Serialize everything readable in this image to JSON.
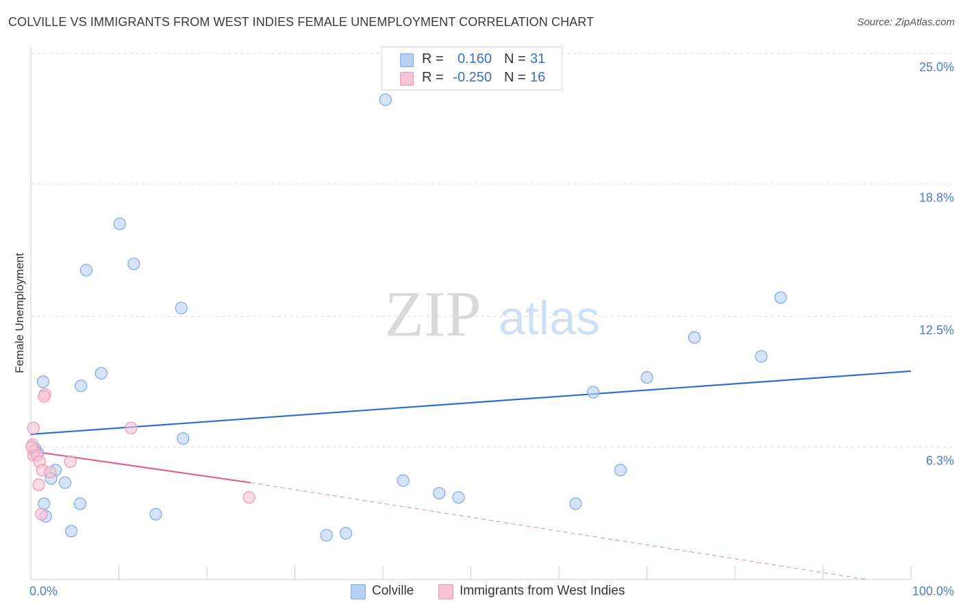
{
  "title": "COLVILLE VS IMMIGRANTS FROM WEST INDIES FEMALE UNEMPLOYMENT CORRELATION CHART",
  "source": "Source: ZipAtlas.com",
  "watermark": {
    "zip": "ZIP",
    "atlas": "atlas"
  },
  "legend": {
    "series1": {
      "r_label": "R =",
      "r_value": "0.160",
      "n_label": "N =",
      "n_value": "31"
    },
    "series2": {
      "r_label": "R =",
      "r_value": "-0.250",
      "n_label": "N =",
      "n_value": "16"
    }
  },
  "bottom_legend": {
    "series1": "Colville",
    "series2": "Immigrants from West Indies"
  },
  "colors": {
    "blue_fill": "#b7d1f3",
    "blue_stroke": "#7aa7e3",
    "blue_line": "#2e6fcc",
    "pink_fill": "#f7c4d6",
    "pink_stroke": "#ec94b4",
    "pink_line": "#e0638e",
    "tick_text": "#4a7cc9",
    "grid": "#dddddd"
  },
  "chart_data": {
    "type": "scatter",
    "title": "COLVILLE VS IMMIGRANTS FROM WEST INDIES FEMALE UNEMPLOYMENT CORRELATION CHART",
    "xlabel": "",
    "ylabel": "Female Unemployment",
    "xlim": [
      0,
      100
    ],
    "ylim": [
      0,
      25.0
    ],
    "y_ticks": [
      {
        "value": 6.3,
        "label": "6.3%"
      },
      {
        "value": 12.5,
        "label": "12.5%"
      },
      {
        "value": 18.8,
        "label": "18.8%"
      },
      {
        "value": 25.0,
        "label": "25.0%"
      }
    ],
    "x_tick_labels": {
      "left": "0.0%",
      "right": "100.0%"
    },
    "x_tick_marks": [
      0,
      10,
      20,
      30,
      40,
      50,
      60,
      70,
      80,
      90,
      100
    ],
    "series": [
      {
        "name": "Colville",
        "points": [
          [
            40.3,
            22.8
          ],
          [
            10.1,
            16.9
          ],
          [
            11.7,
            15.0
          ],
          [
            6.3,
            14.7
          ],
          [
            17.1,
            12.9
          ],
          [
            1.4,
            9.4
          ],
          [
            5.7,
            9.2
          ],
          [
            8.0,
            9.8
          ],
          [
            17.3,
            6.7
          ],
          [
            0.5,
            6.2
          ],
          [
            0.8,
            6.0
          ],
          [
            2.8,
            5.2
          ],
          [
            2.3,
            4.8
          ],
          [
            3.9,
            4.6
          ],
          [
            1.5,
            3.6
          ],
          [
            5.6,
            3.6
          ],
          [
            14.2,
            3.1
          ],
          [
            1.7,
            3.0
          ],
          [
            4.6,
            2.3
          ],
          [
            42.3,
            4.7
          ],
          [
            46.4,
            4.1
          ],
          [
            48.6,
            3.9
          ],
          [
            33.6,
            2.1
          ],
          [
            35.8,
            2.2
          ],
          [
            63.9,
            8.9
          ],
          [
            70.0,
            9.6
          ],
          [
            75.4,
            11.5
          ],
          [
            83.0,
            10.6
          ],
          [
            85.2,
            13.4
          ],
          [
            61.9,
            3.6
          ],
          [
            67.0,
            5.2
          ]
        ]
      },
      {
        "name": "Immigrants from West Indies",
        "points": [
          [
            0.3,
            7.2
          ],
          [
            0.2,
            6.4
          ],
          [
            0.4,
            6.1
          ],
          [
            0.3,
            5.9
          ],
          [
            0.7,
            5.9
          ],
          [
            1.6,
            8.8
          ],
          [
            1.5,
            8.7
          ],
          [
            1.0,
            5.6
          ],
          [
            1.3,
            5.2
          ],
          [
            2.2,
            5.1
          ],
          [
            4.5,
            5.6
          ],
          [
            0.9,
            4.5
          ],
          [
            11.4,
            7.2
          ],
          [
            24.8,
            3.9
          ],
          [
            1.2,
            3.1
          ],
          [
            0.1,
            6.3
          ]
        ]
      }
    ],
    "trendlines": [
      {
        "series": "Colville",
        "x": [
          0,
          100
        ],
        "y": [
          6.9,
          9.9
        ],
        "style": "solid"
      },
      {
        "series": "Immigrants from West Indies",
        "x": [
          0,
          25
        ],
        "y": [
          6.1,
          4.6
        ],
        "style": "solid"
      },
      {
        "series": "Immigrants from West Indies",
        "x": [
          25,
          95
        ],
        "y": [
          4.6,
          0.0
        ],
        "style": "dashed"
      }
    ]
  }
}
